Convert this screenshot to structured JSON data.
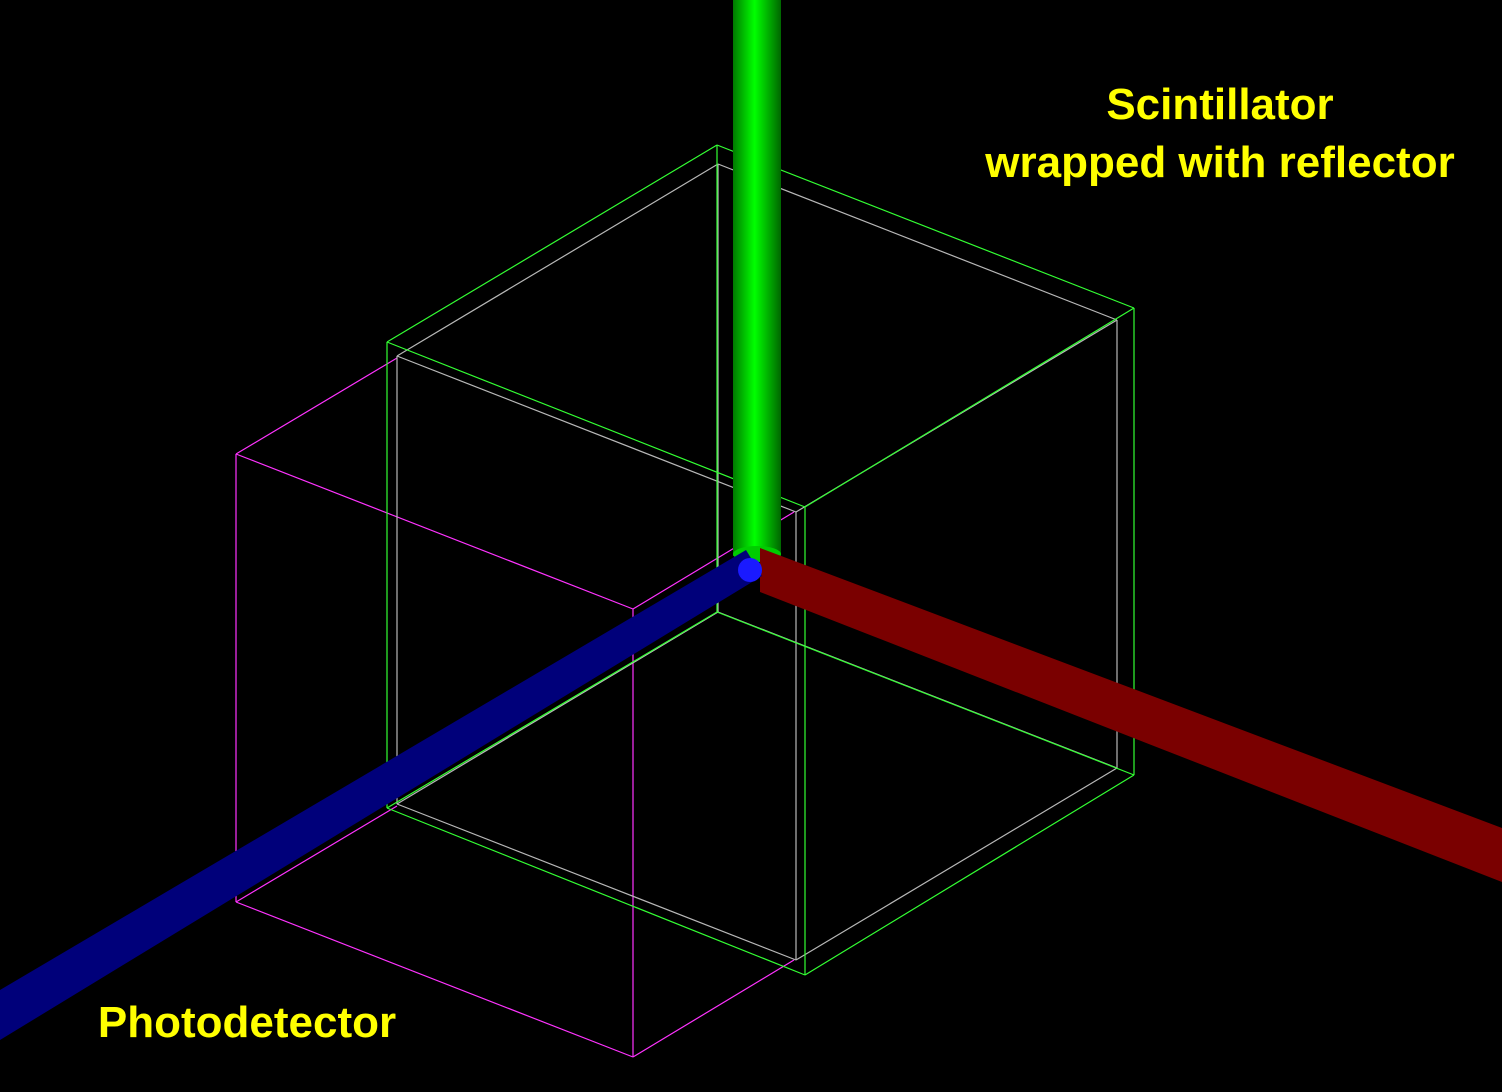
{
  "labels": {
    "scintillator_line1": "Scintillator",
    "scintillator_line2": "wrapped with reflector",
    "photodetector": "Photodetector"
  },
  "colors": {
    "background": "#000000",
    "label_text": "#ffff00",
    "reflector_wireframe": "#33ff33",
    "scintillator_wireframe": "#b0b0b0",
    "photodetector_wireframe": "#ff33ff",
    "axis_x": "#ff0000",
    "axis_y": "#00ee00",
    "axis_z": "#0000ff"
  },
  "objects": [
    {
      "name": "reflector",
      "shape": "cube-wireframe"
    },
    {
      "name": "scintillator",
      "shape": "cube-wireframe"
    },
    {
      "name": "photodetector",
      "shape": "cube-wireframe"
    },
    {
      "name": "axis-x",
      "shape": "cylinder"
    },
    {
      "name": "axis-y",
      "shape": "cylinder"
    },
    {
      "name": "axis-z",
      "shape": "cylinder"
    }
  ]
}
